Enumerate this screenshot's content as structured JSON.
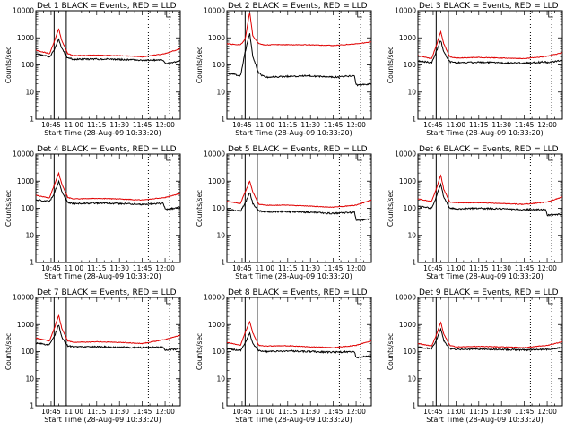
{
  "chart_data": [
    {
      "type": "line",
      "title": "Det 1 BLACK = Events, RED = LLD",
      "xlabel": "Start Time (28-Aug-09 10:33:20)",
      "ylabel": "Counts/sec",
      "yscale": "log",
      "ylim": [
        1,
        10000
      ],
      "y_ticks": [
        "1",
        "10",
        "100",
        "1000",
        "10000"
      ],
      "x_range": [
        "10:35",
        "12:10"
      ],
      "x_tick_labels": [
        "10:45",
        "11:00",
        "11:15",
        "11:30",
        "11:45",
        "12:00"
      ],
      "vertical_lines": [
        {
          "x": "10:47",
          "style": "solid"
        },
        {
          "x": "10:55",
          "style": "solid"
        },
        {
          "x": "11:49",
          "style": "dotted"
        },
        {
          "x": "12:03",
          "style": "dotted"
        }
      ],
      "series": [
        {
          "color": "#000000",
          "x": [
            "10:35",
            "10:44",
            "10:47",
            "10:50",
            "10:52",
            "10:56",
            "11:00",
            "11:15",
            "11:30",
            "11:45",
            "11:59",
            "12:00",
            "12:10"
          ],
          "y": [
            250,
            200,
            350,
            900,
            400,
            180,
            160,
            165,
            160,
            150,
            150,
            110,
            140
          ]
        },
        {
          "color": "#e00000",
          "x": [
            "10:35",
            "10:44",
            "10:47",
            "10:50",
            "10:52",
            "10:56",
            "11:00",
            "11:15",
            "11:30",
            "11:45",
            "12:00",
            "12:10"
          ],
          "y": [
            350,
            260,
            700,
            2200,
            800,
            260,
            220,
            230,
            220,
            200,
            260,
            400
          ]
        }
      ]
    },
    {
      "type": "line",
      "title": "Det 2 BLACK = Events, RED = LLD",
      "xlabel": "Start Time (28-Aug-09 10:33:20)",
      "ylabel": "Counts/sec",
      "yscale": "log",
      "ylim": [
        1,
        10000
      ],
      "y_ticks": [
        "1",
        "10",
        "100",
        "1000",
        "10000"
      ],
      "x_range": [
        "10:35",
        "12:10"
      ],
      "x_tick_labels": [
        "10:45",
        "11:00",
        "11:15",
        "11:30",
        "11:45",
        "12:00"
      ],
      "vertical_lines": [
        {
          "x": "10:47",
          "style": "solid"
        },
        {
          "x": "10:55",
          "style": "solid"
        },
        {
          "x": "11:49",
          "style": "dotted"
        },
        {
          "x": "12:03",
          "style": "dotted"
        }
      ],
      "series": [
        {
          "color": "#000000",
          "x": [
            "10:35",
            "10:44",
            "10:47",
            "10:50",
            "10:52",
            "10:56",
            "11:00",
            "11:15",
            "11:30",
            "11:45",
            "11:59",
            "12:00",
            "12:10"
          ],
          "y": [
            50,
            40,
            300,
            1500,
            200,
            50,
            35,
            38,
            40,
            35,
            40,
            18,
            20
          ]
        },
        {
          "color": "#e00000",
          "x": [
            "10:35",
            "10:44",
            "10:47",
            "10:50",
            "10:52",
            "10:56",
            "11:00",
            "11:15",
            "11:30",
            "11:45",
            "12:00",
            "12:10"
          ],
          "y": [
            600,
            550,
            900,
            9000,
            1200,
            600,
            550,
            560,
            550,
            520,
            600,
            700
          ]
        }
      ]
    },
    {
      "type": "line",
      "title": "Det 3 BLACK = Events, RED = LLD",
      "xlabel": "Start Time (28-Aug-09 10:33:20)",
      "ylabel": "Counts/sec",
      "yscale": "log",
      "ylim": [
        1,
        10000
      ],
      "y_ticks": [
        "1",
        "10",
        "100",
        "1000",
        "10000"
      ],
      "x_range": [
        "10:35",
        "12:10"
      ],
      "x_tick_labels": [
        "10:45",
        "11:00",
        "11:15",
        "11:30",
        "11:45",
        "12:00"
      ],
      "vertical_lines": [
        {
          "x": "10:47",
          "style": "solid"
        },
        {
          "x": "10:55",
          "style": "solid"
        },
        {
          "x": "11:49",
          "style": "dotted"
        },
        {
          "x": "12:03",
          "style": "dotted"
        }
      ],
      "series": [
        {
          "color": "#000000",
          "x": [
            "10:35",
            "10:44",
            "10:47",
            "10:50",
            "10:52",
            "10:56",
            "11:00",
            "11:15",
            "11:30",
            "11:45",
            "11:59",
            "12:00",
            "12:10"
          ],
          "y": [
            140,
            120,
            300,
            800,
            300,
            130,
            120,
            125,
            120,
            115,
            130,
            120,
            150
          ]
        },
        {
          "color": "#e00000",
          "x": [
            "10:35",
            "10:44",
            "10:47",
            "10:50",
            "10:52",
            "10:56",
            "11:00",
            "11:15",
            "11:30",
            "11:45",
            "12:00",
            "12:10"
          ],
          "y": [
            220,
            170,
            500,
            1700,
            600,
            200,
            180,
            190,
            180,
            170,
            210,
            280
          ]
        }
      ]
    },
    {
      "type": "line",
      "title": "Det 4 BLACK = Events, RED = LLD",
      "xlabel": "Start Time (28-Aug-09 10:33:20)",
      "ylabel": "Counts/sec",
      "yscale": "log",
      "ylim": [
        1,
        10000
      ],
      "y_ticks": [
        "1",
        "10",
        "100",
        "1000",
        "10000"
      ],
      "x_range": [
        "10:35",
        "12:10"
      ],
      "x_tick_labels": [
        "10:45",
        "11:00",
        "11:15",
        "11:30",
        "11:45",
        "12:00"
      ],
      "vertical_lines": [
        {
          "x": "10:47",
          "style": "solid"
        },
        {
          "x": "10:55",
          "style": "solid"
        },
        {
          "x": "11:49",
          "style": "dotted"
        },
        {
          "x": "12:03",
          "style": "dotted"
        }
      ],
      "series": [
        {
          "color": "#000000",
          "x": [
            "10:35",
            "10:44",
            "10:47",
            "10:50",
            "10:52",
            "10:56",
            "11:00",
            "11:15",
            "11:30",
            "11:45",
            "11:59",
            "12:00",
            "12:10"
          ],
          "y": [
            200,
            180,
            350,
            1000,
            400,
            160,
            150,
            155,
            150,
            140,
            150,
            90,
            110
          ]
        },
        {
          "color": "#e00000",
          "x": [
            "10:35",
            "10:44",
            "10:47",
            "10:50",
            "10:52",
            "10:56",
            "11:00",
            "11:15",
            "11:30",
            "11:45",
            "12:00",
            "12:10"
          ],
          "y": [
            300,
            240,
            700,
            2000,
            800,
            250,
            220,
            230,
            220,
            200,
            250,
            350
          ]
        }
      ]
    },
    {
      "type": "line",
      "title": "Det 5 BLACK = Events, RED = LLD",
      "xlabel": "Start Time (28-Aug-09 10:33:20)",
      "ylabel": "Counts/sec",
      "yscale": "log",
      "ylim": [
        1,
        10000
      ],
      "y_ticks": [
        "1",
        "10",
        "100",
        "1000",
        "10000"
      ],
      "x_range": [
        "10:35",
        "12:10"
      ],
      "x_tick_labels": [
        "10:45",
        "11:00",
        "11:15",
        "11:30",
        "11:45",
        "12:00"
      ],
      "vertical_lines": [
        {
          "x": "10:47",
          "style": "solid"
        },
        {
          "x": "10:55",
          "style": "solid"
        },
        {
          "x": "11:49",
          "style": "dotted"
        },
        {
          "x": "12:03",
          "style": "dotted"
        }
      ],
      "series": [
        {
          "color": "#000000",
          "x": [
            "10:35",
            "10:44",
            "10:47",
            "10:50",
            "10:52",
            "10:56",
            "11:00",
            "11:15",
            "11:30",
            "11:45",
            "11:59",
            "12:00",
            "12:10"
          ],
          "y": [
            90,
            80,
            150,
            400,
            150,
            80,
            75,
            75,
            70,
            65,
            70,
            35,
            40
          ]
        },
        {
          "color": "#e00000",
          "x": [
            "10:35",
            "10:44",
            "10:47",
            "10:50",
            "10:52",
            "10:56",
            "11:00",
            "11:15",
            "11:30",
            "11:45",
            "12:00",
            "12:10"
          ],
          "y": [
            180,
            150,
            400,
            1000,
            400,
            140,
            130,
            130,
            120,
            110,
            130,
            200
          ]
        }
      ]
    },
    {
      "type": "line",
      "title": "Det 6 BLACK = Events, RED = LLD",
      "xlabel": "Start Time (28-Aug-09 10:33:20)",
      "ylabel": "Counts/sec",
      "yscale": "log",
      "ylim": [
        1,
        10000
      ],
      "y_ticks": [
        "1",
        "10",
        "100",
        "1000",
        "10000"
      ],
      "x_range": [
        "10:35",
        "12:10"
      ],
      "x_tick_labels": [
        "10:45",
        "11:00",
        "11:15",
        "11:30",
        "11:45",
        "12:00"
      ],
      "vertical_lines": [
        {
          "x": "10:47",
          "style": "solid"
        },
        {
          "x": "10:55",
          "style": "solid"
        },
        {
          "x": "11:49",
          "style": "dotted"
        },
        {
          "x": "12:03",
          "style": "dotted"
        }
      ],
      "series": [
        {
          "color": "#000000",
          "x": [
            "10:35",
            "10:44",
            "10:47",
            "10:50",
            "10:52",
            "10:56",
            "11:00",
            "11:15",
            "11:30",
            "11:45",
            "11:59",
            "12:00",
            "12:10"
          ],
          "y": [
            120,
            100,
            250,
            800,
            250,
            100,
            95,
            100,
            95,
            90,
            90,
            55,
            60
          ]
        },
        {
          "color": "#e00000",
          "x": [
            "10:35",
            "10:44",
            "10:47",
            "10:50",
            "10:52",
            "10:56",
            "11:00",
            "11:15",
            "11:30",
            "11:45",
            "12:00",
            "12:10"
          ],
          "y": [
            220,
            180,
            500,
            1700,
            500,
            170,
            160,
            160,
            150,
            140,
            170,
            260
          ]
        }
      ]
    },
    {
      "type": "line",
      "title": "Det 7 BLACK = Events, RED = LLD",
      "xlabel": "Start Time (28-Aug-09 10:33:20)",
      "ylabel": "Counts/sec",
      "yscale": "log",
      "ylim": [
        1,
        10000
      ],
      "y_ticks": [
        "1",
        "10",
        "100",
        "1000",
        "10000"
      ],
      "x_range": [
        "10:35",
        "12:10"
      ],
      "x_tick_labels": [
        "10:45",
        "11:00",
        "11:15",
        "11:30",
        "11:45",
        "12:00"
      ],
      "vertical_lines": [
        {
          "x": "10:47",
          "style": "solid"
        },
        {
          "x": "10:55",
          "style": "solid"
        },
        {
          "x": "11:49",
          "style": "dotted"
        },
        {
          "x": "12:03",
          "style": "dotted"
        }
      ],
      "series": [
        {
          "color": "#000000",
          "x": [
            "10:35",
            "10:44",
            "10:47",
            "10:50",
            "10:52",
            "10:56",
            "11:00",
            "11:15",
            "11:30",
            "11:45",
            "11:59",
            "12:00",
            "12:10"
          ],
          "y": [
            200,
            180,
            350,
            1000,
            350,
            160,
            150,
            150,
            145,
            140,
            145,
            110,
            130
          ]
        },
        {
          "color": "#e00000",
          "x": [
            "10:35",
            "10:44",
            "10:47",
            "10:50",
            "10:52",
            "10:56",
            "11:00",
            "11:15",
            "11:30",
            "11:45",
            "12:00",
            "12:10"
          ],
          "y": [
            320,
            250,
            700,
            2200,
            750,
            250,
            220,
            230,
            220,
            200,
            280,
            400
          ]
        }
      ]
    },
    {
      "type": "line",
      "title": "Det 8 BLACK = Events, RED = LLD",
      "xlabel": "Start Time (28-Aug-09 10:33:20)",
      "ylabel": "Counts/sec",
      "yscale": "log",
      "ylim": [
        1,
        10000
      ],
      "y_ticks": [
        "1",
        "10",
        "100",
        "1000",
        "10000"
      ],
      "x_range": [
        "10:35",
        "12:10"
      ],
      "x_tick_labels": [
        "10:45",
        "11:00",
        "11:15",
        "11:30",
        "11:45",
        "12:00"
      ],
      "vertical_lines": [
        {
          "x": "10:47",
          "style": "solid"
        },
        {
          "x": "10:55",
          "style": "solid"
        },
        {
          "x": "11:49",
          "style": "dotted"
        },
        {
          "x": "12:03",
          "style": "dotted"
        }
      ],
      "series": [
        {
          "color": "#000000",
          "x": [
            "10:35",
            "10:44",
            "10:47",
            "10:50",
            "10:52",
            "10:56",
            "11:00",
            "11:15",
            "11:30",
            "11:45",
            "11:59",
            "12:00",
            "12:10"
          ],
          "y": [
            130,
            110,
            200,
            500,
            200,
            110,
            100,
            105,
            100,
            95,
            100,
            60,
            70
          ]
        },
        {
          "color": "#e00000",
          "x": [
            "10:35",
            "10:44",
            "10:47",
            "10:50",
            "10:52",
            "10:56",
            "11:00",
            "11:15",
            "11:30",
            "11:45",
            "12:00",
            "12:10"
          ],
          "y": [
            220,
            170,
            500,
            1300,
            500,
            170,
            160,
            165,
            150,
            140,
            170,
            250
          ]
        }
      ]
    },
    {
      "type": "line",
      "title": "Det 9 BLACK = Events, RED = LLD",
      "xlabel": "Start Time (28-Aug-09 10:33:20)",
      "ylabel": "Counts/sec",
      "yscale": "log",
      "ylim": [
        1,
        10000
      ],
      "y_ticks": [
        "1",
        "10",
        "100",
        "1000",
        "10000"
      ],
      "x_range": [
        "10:35",
        "12:10"
      ],
      "x_tick_labels": [
        "10:45",
        "11:00",
        "11:15",
        "11:30",
        "11:45",
        "12:00"
      ],
      "vertical_lines": [
        {
          "x": "10:47",
          "style": "solid"
        },
        {
          "x": "10:55",
          "style": "solid"
        },
        {
          "x": "11:49",
          "style": "dotted"
        },
        {
          "x": "12:03",
          "style": "dotted"
        }
      ],
      "series": [
        {
          "color": "#000000",
          "x": [
            "10:35",
            "10:44",
            "10:47",
            "10:50",
            "10:52",
            "10:56",
            "11:00",
            "11:15",
            "11:30",
            "11:45",
            "11:59",
            "12:00",
            "12:10"
          ],
          "y": [
            150,
            130,
            250,
            700,
            250,
            130,
            120,
            125,
            120,
            115,
            120,
            120,
            140
          ]
        },
        {
          "color": "#e00000",
          "x": [
            "10:35",
            "10:44",
            "10:47",
            "10:50",
            "10:52",
            "10:56",
            "11:00",
            "11:15",
            "11:30",
            "11:45",
            "12:00",
            "12:10"
          ],
          "y": [
            200,
            160,
            400,
            1200,
            450,
            170,
            150,
            155,
            150,
            140,
            170,
            230
          ]
        }
      ]
    }
  ]
}
